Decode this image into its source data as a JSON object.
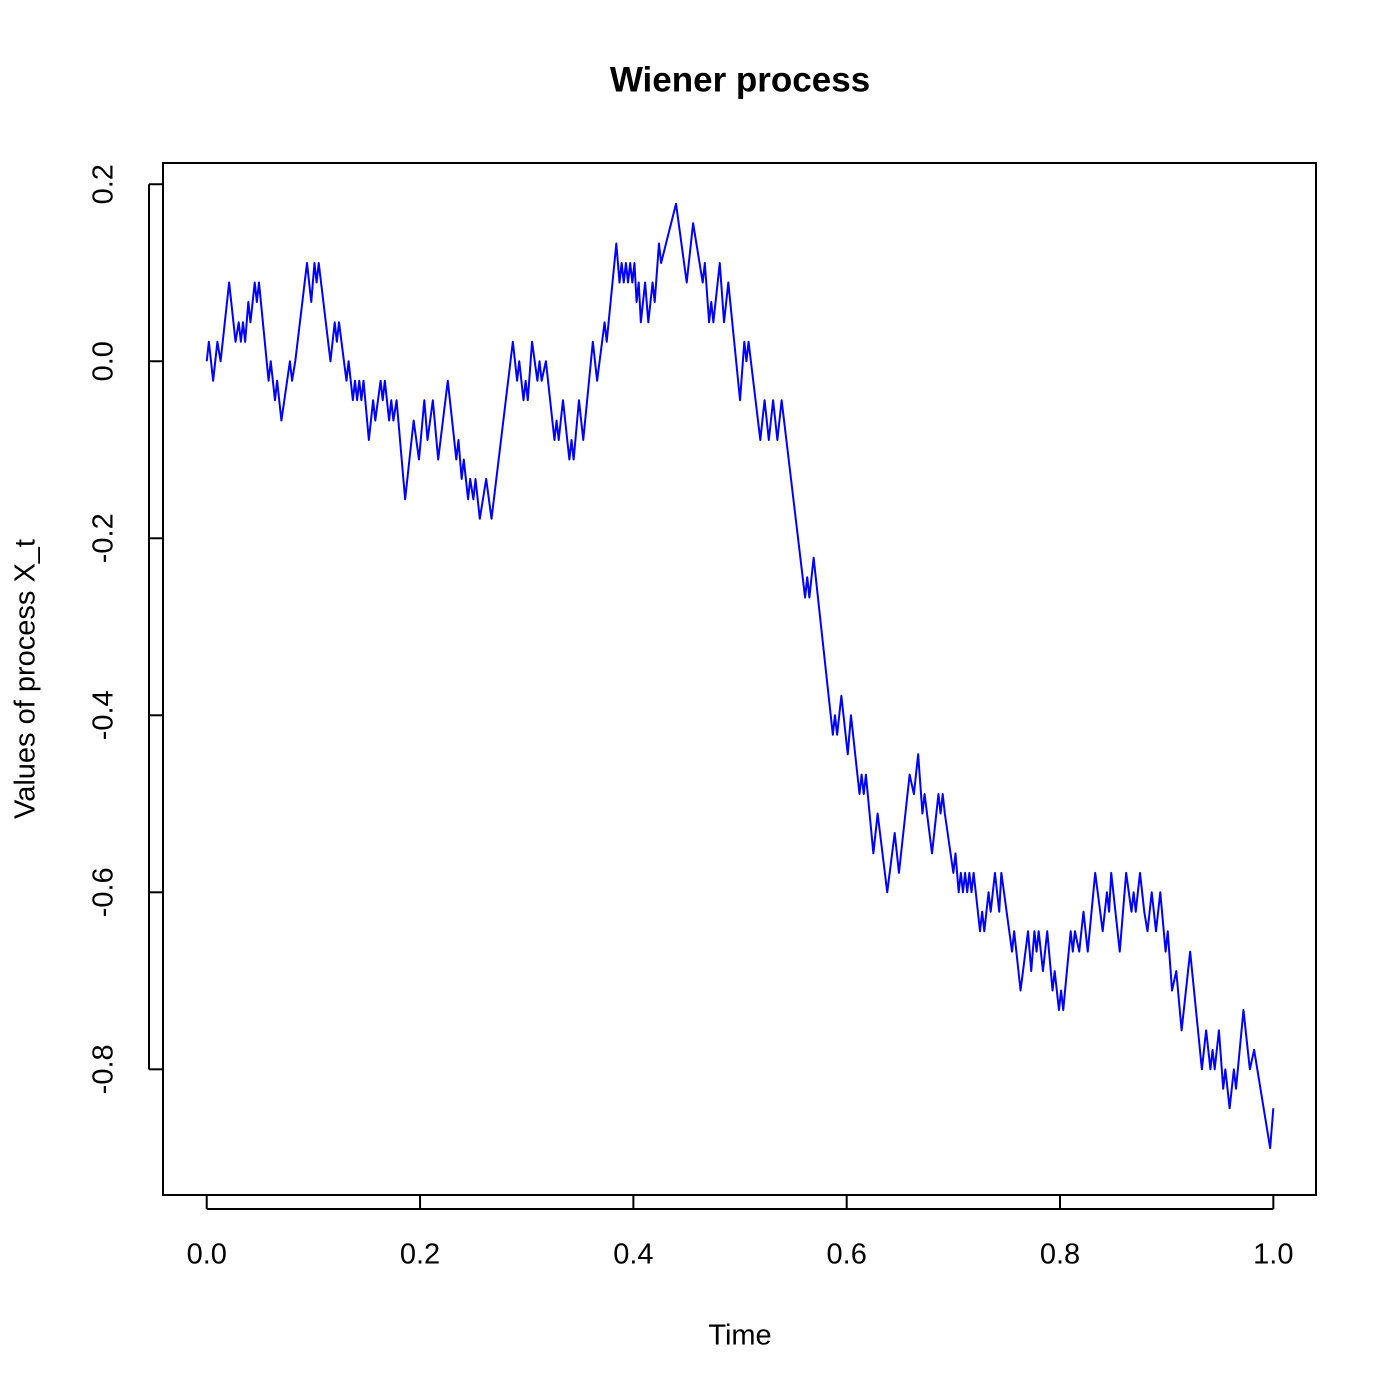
{
  "chart_data": {
    "type": "line",
    "title": "Wiener process",
    "x_label": "Time",
    "y_label": "Values of process X_t",
    "color": "#0000ff",
    "xlim": [
      -0.041,
      1.04
    ],
    "ylim": [
      -0.942,
      0.224
    ],
    "xticks": [
      {
        "value": 0,
        "label": "0.0"
      },
      0.2,
      0.4,
      0.6,
      0.8,
      {
        "value": 1,
        "label": "1.0"
      }
    ],
    "yticks": [
      -0.8,
      -0.6,
      -0.4,
      -0.2,
      {
        "value": 0,
        "label": "0.0"
      },
      0.2
    ],
    "x": [
      0,
      0.002,
      0.006,
      0.01,
      0.013,
      0.021,
      0.027,
      0.03,
      0.032,
      0.034,
      0.036,
      0.039,
      0.041,
      0.045,
      0.047,
      0.049,
      0.058,
      0.06,
      0.064,
      0.066,
      0.07,
      0.078,
      0.08,
      0.083,
      0.094,
      0.098,
      0.101,
      0.103,
      0.105,
      0.116,
      0.12,
      0.122,
      0.124,
      0.131,
      0.133,
      0.137,
      0.139,
      0.141,
      0.143,
      0.145,
      0.147,
      0.152,
      0.156,
      0.158,
      0.163,
      0.165,
      0.167,
      0.171,
      0.173,
      0.175,
      0.178,
      0.186,
      0.194,
      0.199,
      0.204,
      0.207,
      0.212,
      0.217,
      0.226,
      0.234,
      0.236,
      0.239,
      0.241,
      0.245,
      0.247,
      0.25,
      0.252,
      0.256,
      0.262,
      0.267,
      0.287,
      0.291,
      0.293,
      0.297,
      0.299,
      0.301,
      0.305,
      0.31,
      0.312,
      0.314,
      0.318,
      0.326,
      0.328,
      0.33,
      0.334,
      0.338,
      0.34,
      0.342,
      0.344,
      0.349,
      0.353,
      0.362,
      0.366,
      0.373,
      0.375,
      0.384,
      0.387,
      0.389,
      0.391,
      0.393,
      0.395,
      0.397,
      0.399,
      0.401,
      0.403,
      0.405,
      0.407,
      0.411,
      0.414,
      0.418,
      0.42,
      0.424,
      0.426,
      0.44,
      0.45,
      0.456,
      0.465,
      0.467,
      0.471,
      0.473,
      0.475,
      0.481,
      0.485,
      0.489,
      0.5,
      0.504,
      0.506,
      0.508,
      0.519,
      0.523,
      0.527,
      0.531,
      0.535,
      0.539,
      0.561,
      0.563,
      0.565,
      0.569,
      0.587,
      0.589,
      0.591,
      0.595,
      0.601,
      0.604,
      0.612,
      0.614,
      0.616,
      0.618,
      0.625,
      0.629,
      0.638,
      0.645,
      0.649,
      0.659,
      0.663,
      0.667,
      0.671,
      0.673,
      0.68,
      0.686,
      0.688,
      0.69,
      0.692,
      0.7,
      0.702,
      0.705,
      0.707,
      0.709,
      0.711,
      0.713,
      0.715,
      0.717,
      0.719,
      0.725,
      0.727,
      0.729,
      0.733,
      0.735,
      0.739,
      0.743,
      0.745,
      0.755,
      0.757,
      0.763,
      0.77,
      0.773,
      0.776,
      0.778,
      0.78,
      0.784,
      0.788,
      0.793,
      0.795,
      0.799,
      0.801,
      0.803,
      0.81,
      0.812,
      0.814,
      0.818,
      0.822,
      0.826,
      0.833,
      0.84,
      0.844,
      0.846,
      0.848,
      0.856,
      0.862,
      0.867,
      0.869,
      0.871,
      0.875,
      0.879,
      0.882,
      0.886,
      0.89,
      0.894,
      0.899,
      0.901,
      0.905,
      0.909,
      0.914,
      0.922,
      0.933,
      0.937,
      0.941,
      0.943,
      0.945,
      0.949,
      0.953,
      0.955,
      0.959,
      0.963,
      0.965,
      0.972,
      0.976,
      0.978,
      0.982,
      0.997,
      1.0
    ],
    "values": [
      0,
      0.022,
      -0.022,
      0.022,
      0.0,
      0.089,
      0.022,
      0.044,
      0.022,
      0.044,
      0.022,
      0.067,
      0.044,
      0.089,
      0.067,
      0.089,
      -0.022,
      0.0,
      -0.044,
      -0.022,
      -0.067,
      0.0,
      -0.022,
      0.0,
      0.111,
      0.067,
      0.111,
      0.089,
      0.111,
      0.0,
      0.044,
      0.022,
      0.044,
      -0.022,
      0.0,
      -0.044,
      -0.022,
      -0.044,
      -0.022,
      -0.044,
      -0.022,
      -0.089,
      -0.044,
      -0.067,
      -0.022,
      -0.044,
      -0.022,
      -0.067,
      -0.044,
      -0.067,
      -0.044,
      -0.156,
      -0.067,
      -0.111,
      -0.044,
      -0.089,
      -0.044,
      -0.111,
      -0.022,
      -0.111,
      -0.089,
      -0.133,
      -0.111,
      -0.156,
      -0.133,
      -0.156,
      -0.133,
      -0.178,
      -0.133,
      -0.178,
      0.022,
      -0.022,
      0.0,
      -0.044,
      -0.022,
      -0.044,
      0.022,
      -0.022,
      0.0,
      -0.022,
      0.0,
      -0.089,
      -0.067,
      -0.089,
      -0.044,
      -0.089,
      -0.111,
      -0.089,
      -0.111,
      -0.044,
      -0.089,
      0.022,
      -0.022,
      0.044,
      0.022,
      0.133,
      0.089,
      0.111,
      0.089,
      0.111,
      0.089,
      0.111,
      0.089,
      0.111,
      0.067,
      0.089,
      0.044,
      0.089,
      0.044,
      0.089,
      0.067,
      0.133,
      0.111,
      0.178,
      0.089,
      0.156,
      0.089,
      0.111,
      0.044,
      0.067,
      0.044,
      0.111,
      0.044,
      0.089,
      -0.044,
      0.022,
      0.0,
      0.022,
      -0.089,
      -0.044,
      -0.089,
      -0.044,
      -0.089,
      -0.044,
      -0.267,
      -0.244,
      -0.267,
      -0.222,
      -0.422,
      -0.4,
      -0.422,
      -0.378,
      -0.444,
      -0.4,
      -0.489,
      -0.467,
      -0.489,
      -0.467,
      -0.556,
      -0.511,
      -0.6,
      -0.533,
      -0.578,
      -0.467,
      -0.489,
      -0.444,
      -0.511,
      -0.489,
      -0.556,
      -0.489,
      -0.511,
      -0.489,
      -0.511,
      -0.578,
      -0.556,
      -0.6,
      -0.578,
      -0.6,
      -0.578,
      -0.6,
      -0.578,
      -0.6,
      -0.578,
      -0.644,
      -0.622,
      -0.644,
      -0.6,
      -0.622,
      -0.578,
      -0.622,
      -0.578,
      -0.667,
      -0.644,
      -0.711,
      -0.644,
      -0.689,
      -0.644,
      -0.667,
      -0.644,
      -0.689,
      -0.644,
      -0.711,
      -0.689,
      -0.733,
      -0.711,
      -0.733,
      -0.644,
      -0.667,
      -0.644,
      -0.667,
      -0.622,
      -0.667,
      -0.578,
      -0.644,
      -0.6,
      -0.622,
      -0.578,
      -0.667,
      -0.578,
      -0.622,
      -0.6,
      -0.622,
      -0.578,
      -0.622,
      -0.644,
      -0.6,
      -0.644,
      -0.6,
      -0.667,
      -0.644,
      -0.711,
      -0.689,
      -0.756,
      -0.667,
      -0.8,
      -0.756,
      -0.8,
      -0.778,
      -0.8,
      -0.756,
      -0.822,
      -0.8,
      -0.844,
      -0.8,
      -0.822,
      -0.733,
      -0.778,
      -0.8,
      -0.778,
      -0.889,
      -0.844
    ]
  }
}
